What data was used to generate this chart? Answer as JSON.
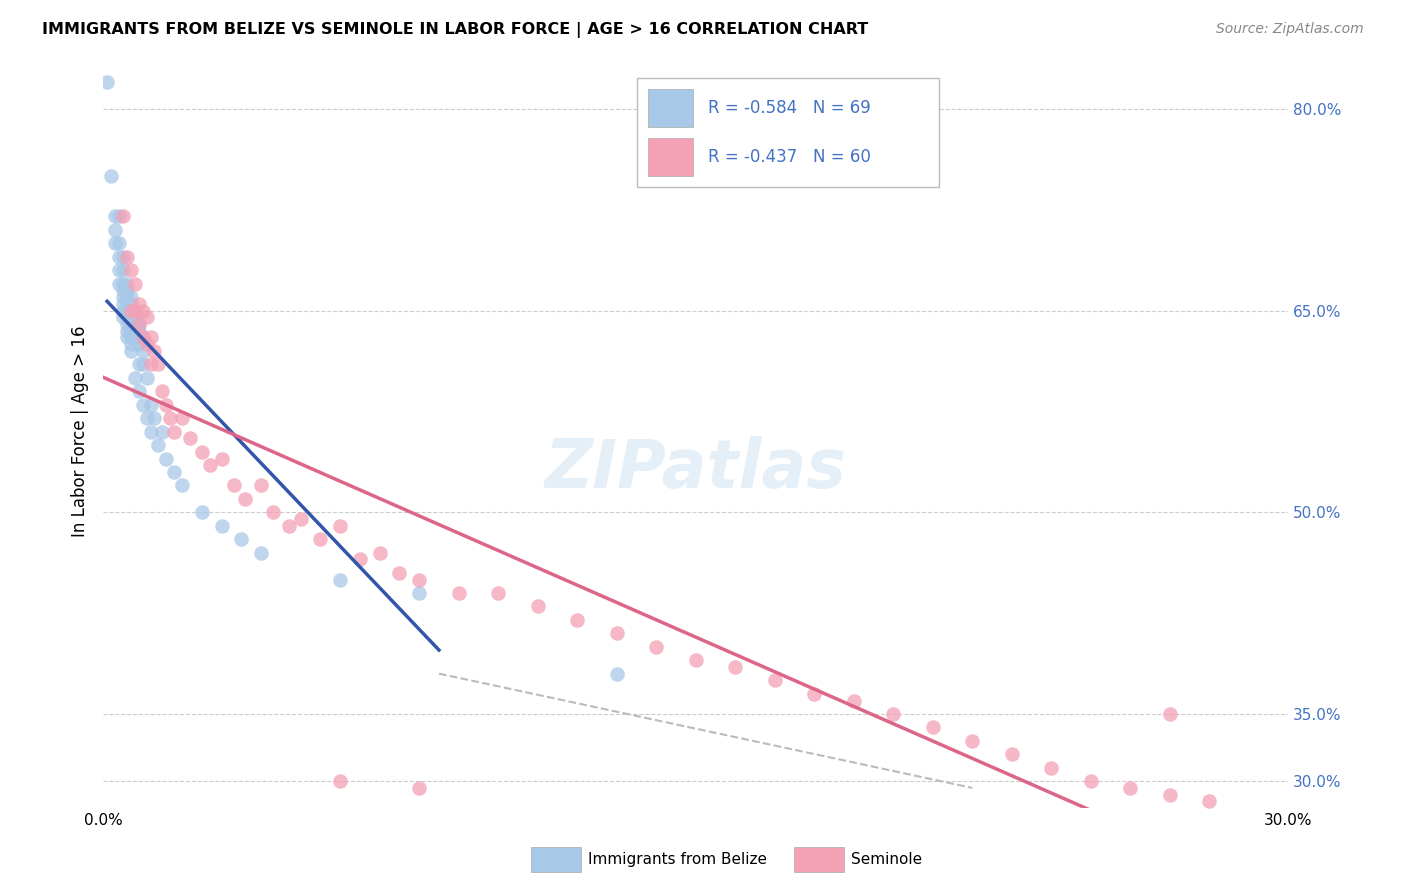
{
  "title": "IMMIGRANTS FROM BELIZE VS SEMINOLE IN LABOR FORCE | AGE > 16 CORRELATION CHART",
  "source": "Source: ZipAtlas.com",
  "ylabel": "In Labor Force | Age > 16",
  "xlim": [
    0.0,
    0.3
  ],
  "ylim": [
    0.28,
    0.84
  ],
  "ytick_right": [
    0.3,
    0.35,
    0.5,
    0.65,
    0.8
  ],
  "legend_r_blue": "R = -0.584",
  "legend_n_blue": "N = 69",
  "legend_r_pink": "R = -0.437",
  "legend_n_pink": "N = 60",
  "color_blue": "#A8C8E8",
  "color_pink": "#F4A0B5",
  "color_blue_line": "#3355AA",
  "color_pink_line": "#DD6688",
  "color_dashed": "#BBBBBB",
  "watermark": "ZIPatlas",
  "blue_x": [
    0.001,
    0.002,
    0.003,
    0.003,
    0.003,
    0.004,
    0.004,
    0.004,
    0.004,
    0.004,
    0.005,
    0.005,
    0.005,
    0.005,
    0.005,
    0.005,
    0.005,
    0.005,
    0.006,
    0.006,
    0.006,
    0.006,
    0.006,
    0.006,
    0.006,
    0.006,
    0.006,
    0.007,
    0.007,
    0.007,
    0.007,
    0.007,
    0.007,
    0.007,
    0.007,
    0.007,
    0.008,
    0.008,
    0.008,
    0.008,
    0.008,
    0.008,
    0.009,
    0.009,
    0.009,
    0.009,
    0.009,
    0.009,
    0.01,
    0.01,
    0.01,
    0.01,
    0.011,
    0.011,
    0.012,
    0.012,
    0.013,
    0.014,
    0.015,
    0.016,
    0.018,
    0.02,
    0.025,
    0.03,
    0.035,
    0.04,
    0.06,
    0.08,
    0.13
  ],
  "blue_y": [
    0.82,
    0.75,
    0.72,
    0.71,
    0.7,
    0.72,
    0.7,
    0.69,
    0.68,
    0.67,
    0.69,
    0.68,
    0.67,
    0.665,
    0.66,
    0.655,
    0.65,
    0.645,
    0.67,
    0.665,
    0.66,
    0.655,
    0.65,
    0.645,
    0.64,
    0.635,
    0.63,
    0.66,
    0.655,
    0.65,
    0.645,
    0.64,
    0.635,
    0.63,
    0.625,
    0.62,
    0.65,
    0.645,
    0.64,
    0.635,
    0.63,
    0.6,
    0.64,
    0.635,
    0.63,
    0.625,
    0.61,
    0.59,
    0.63,
    0.62,
    0.61,
    0.58,
    0.6,
    0.57,
    0.58,
    0.56,
    0.57,
    0.55,
    0.56,
    0.54,
    0.53,
    0.52,
    0.5,
    0.49,
    0.48,
    0.47,
    0.45,
    0.44,
    0.38
  ],
  "pink_x": [
    0.005,
    0.006,
    0.007,
    0.007,
    0.008,
    0.008,
    0.009,
    0.009,
    0.01,
    0.01,
    0.011,
    0.011,
    0.012,
    0.012,
    0.013,
    0.014,
    0.015,
    0.016,
    0.017,
    0.018,
    0.02,
    0.022,
    0.025,
    0.027,
    0.03,
    0.033,
    0.036,
    0.04,
    0.043,
    0.047,
    0.05,
    0.055,
    0.06,
    0.065,
    0.07,
    0.075,
    0.08,
    0.09,
    0.1,
    0.11,
    0.12,
    0.13,
    0.14,
    0.15,
    0.16,
    0.17,
    0.18,
    0.19,
    0.2,
    0.21,
    0.22,
    0.23,
    0.24,
    0.25,
    0.26,
    0.27,
    0.28,
    0.06,
    0.08,
    0.27
  ],
  "pink_y": [
    0.72,
    0.69,
    0.68,
    0.65,
    0.67,
    0.65,
    0.655,
    0.64,
    0.65,
    0.63,
    0.645,
    0.625,
    0.63,
    0.61,
    0.62,
    0.61,
    0.59,
    0.58,
    0.57,
    0.56,
    0.57,
    0.555,
    0.545,
    0.535,
    0.54,
    0.52,
    0.51,
    0.52,
    0.5,
    0.49,
    0.495,
    0.48,
    0.49,
    0.465,
    0.47,
    0.455,
    0.45,
    0.44,
    0.44,
    0.43,
    0.42,
    0.41,
    0.4,
    0.39,
    0.385,
    0.375,
    0.365,
    0.36,
    0.35,
    0.34,
    0.33,
    0.32,
    0.31,
    0.3,
    0.295,
    0.29,
    0.285,
    0.3,
    0.295,
    0.35
  ],
  "blue_line_x0": 0.001,
  "blue_line_x1": 0.085,
  "pink_line_x0": 0.0,
  "pink_line_x1": 0.3,
  "dash_line_x": [
    0.085,
    0.22
  ],
  "dash_line_y": [
    0.38,
    0.295
  ]
}
